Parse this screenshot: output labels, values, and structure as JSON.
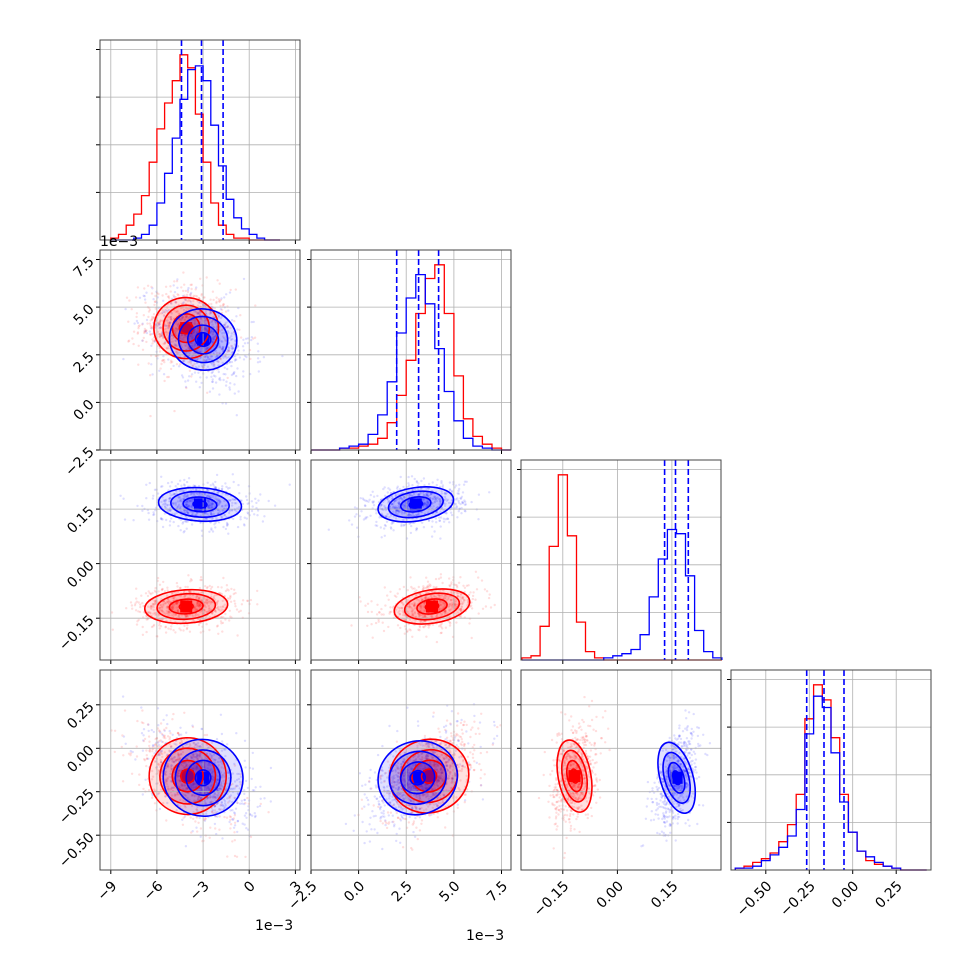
{
  "figure": {
    "colors": {
      "red": "#ff0000",
      "blue": "#0000ff",
      "grid": "#b0b0b0",
      "frame": "#000000"
    }
  },
  "chart_data": {
    "type": "corner",
    "series": [
      {
        "name": "",
        "color": "#ff0000"
      },
      {
        "name": "",
        "color": "#0000ff"
      }
    ],
    "parameters": [
      {
        "index": 0,
        "ticks": [
          -9,
          -6,
          -3,
          0,
          3
        ],
        "tick_labels": [
          "−9",
          "−6",
          "−3",
          "0",
          "3"
        ],
        "range": [
          -9.7,
          3.3
        ],
        "multiplier": "1e−3",
        "quantiles_blue": [
          -4.4,
          -3.1,
          -1.7
        ]
      },
      {
        "index": 1,
        "ticks": [
          -2.5,
          0.0,
          2.5,
          5.0,
          7.5
        ],
        "tick_labels": [
          "−2.5",
          "0.0",
          "2.5",
          "5.0",
          "7.5"
        ],
        "range": [
          -2.5,
          8.0
        ],
        "multiplier": "1e−3",
        "quantiles_blue": [
          2.0,
          3.15,
          4.2
        ]
      },
      {
        "index": 2,
        "ticks": [
          -0.15,
          0.0,
          0.15
        ],
        "tick_labels": [
          "−0.15",
          "0.00",
          "0.15"
        ],
        "range": [
          -0.265,
          0.285
        ],
        "quantiles_blue": [
          0.13,
          0.16,
          0.195
        ]
      },
      {
        "index": 3,
        "ticks": [
          -0.5,
          -0.25,
          0.0,
          0.25
        ],
        "tick_labels": [
          "−0.50",
          "−0.25",
          "0.00",
          "0.25"
        ],
        "range": [
          -0.7,
          0.45
        ],
        "quantiles_blue": [
          -0.265,
          -0.165,
          -0.05
        ]
      }
    ],
    "histograms": [
      {
        "param": 0,
        "bins_x": [
          -8.75,
          -8.25,
          -7.75,
          -7.25,
          -6.75,
          -6.25,
          -5.75,
          -5.25,
          -4.75,
          -4.25,
          -3.75,
          -3.25,
          -2.75,
          -2.25,
          -1.75,
          -1.25,
          -0.75,
          -0.25,
          0.25,
          0.75,
          1.25,
          1.75
        ],
        "red": [
          1,
          3,
          8,
          14,
          24,
          42,
          60,
          74,
          86,
          100,
          93,
          68,
          42,
          20,
          8,
          3,
          1,
          1,
          0,
          0,
          0,
          0
        ],
        "blue": [
          0,
          0,
          0,
          1,
          3,
          8,
          20,
          36,
          55,
          76,
          92,
          94,
          86,
          62,
          40,
          22,
          12,
          6,
          3,
          1,
          0,
          0
        ]
      },
      {
        "param": 1,
        "bins_x": [
          -2.25,
          -1.75,
          -1.25,
          -0.75,
          -0.25,
          0.25,
          0.75,
          1.25,
          1.75,
          2.25,
          2.75,
          3.25,
          3.75,
          4.25,
          4.75,
          5.25,
          5.75,
          6.25,
          6.75,
          7.25,
          7.75
        ],
        "red": [
          0,
          0,
          0,
          1,
          1,
          2,
          3,
          6,
          14,
          28,
          46,
          70,
          88,
          95,
          70,
          38,
          16,
          7,
          3,
          1,
          0
        ],
        "blue": [
          0,
          0,
          0,
          1,
          2,
          3,
          8,
          18,
          35,
          60,
          78,
          90,
          75,
          52,
          30,
          15,
          6,
          2,
          1,
          0,
          0
        ]
      },
      {
        "param": 2,
        "bins_x": [
          -0.25,
          -0.225,
          -0.2,
          -0.175,
          -0.15,
          -0.125,
          -0.1,
          -0.075,
          -0.05,
          -0.025,
          0.0,
          0.025,
          0.05,
          0.075,
          0.1,
          0.125,
          0.15,
          0.175,
          0.2,
          0.225,
          0.25,
          0.275
        ],
        "red": [
          1,
          2,
          16,
          54,
          88,
          59,
          18,
          4,
          1,
          0,
          0,
          0,
          0,
          0,
          0,
          0,
          0,
          0,
          0,
          0,
          0,
          0
        ],
        "blue": [
          0,
          0,
          0,
          0,
          0,
          0,
          0,
          0,
          0,
          1,
          2,
          3,
          5,
          12,
          30,
          48,
          62,
          60,
          40,
          14,
          4,
          1
        ]
      },
      {
        "param": 3,
        "bins_x": [
          -0.65,
          -0.6,
          -0.55,
          -0.5,
          -0.45,
          -0.4,
          -0.35,
          -0.3,
          -0.25,
          -0.2,
          -0.15,
          -0.1,
          -0.05,
          0.0,
          0.05,
          0.1,
          0.15,
          0.2,
          0.25,
          0.3,
          0.35,
          0.4
        ],
        "red": [
          1,
          2,
          4,
          6,
          9,
          15,
          24,
          40,
          80,
          98,
          90,
          70,
          40,
          20,
          10,
          5,
          3,
          2,
          1,
          0,
          0,
          0
        ],
        "blue": [
          1,
          1,
          2,
          5,
          8,
          12,
          18,
          32,
          72,
          92,
          86,
          62,
          36,
          20,
          10,
          7,
          4,
          2,
          1,
          0,
          0,
          0
        ]
      }
    ],
    "scatter2d": [
      {
        "x_param": 0,
        "y_param": 1,
        "red": {
          "mean": [
            -4.1,
            3.9
          ],
          "sd": [
            1.3,
            1.0
          ],
          "rho": -0.1,
          "contours": [
            [
              0.45,
              0.3
            ],
            [
              0.9,
              0.75
            ],
            [
              1.5,
              1.2
            ],
            [
              2.1,
              1.6
            ]
          ]
        },
        "blue": {
          "mean": [
            -3.0,
            3.3
          ],
          "sd": [
            1.4,
            1.05
          ],
          "rho": -0.35,
          "contours": [
            [
              0.5,
              0.35
            ],
            [
              1.0,
              0.75
            ],
            [
              1.6,
              1.2
            ],
            [
              2.2,
              1.6
            ]
          ]
        }
      },
      {
        "x_param": 0,
        "y_param": 2,
        "red": {
          "mean": [
            -4.1,
            -0.118
          ],
          "sd": [
            1.4,
            0.026
          ],
          "rho": 0.1,
          "contours": [
            [
              0.45,
              0.01
            ],
            [
              1.1,
              0.02
            ],
            [
              1.9,
              0.035
            ],
            [
              2.7,
              0.046
            ]
          ]
        },
        "blue": {
          "mean": [
            -3.2,
            0.163
          ],
          "sd": [
            1.4,
            0.026
          ],
          "rho": -0.1,
          "contours": [
            [
              0.45,
              0.01
            ],
            [
              1.1,
              0.02
            ],
            [
              1.9,
              0.035
            ],
            [
              2.7,
              0.046
            ]
          ]
        }
      },
      {
        "x_param": 1,
        "y_param": 2,
        "red": {
          "mean": [
            3.85,
            -0.118
          ],
          "sd": [
            1.1,
            0.026
          ],
          "rho": 0.25,
          "contours": [
            [
              0.35,
              0.01
            ],
            [
              0.8,
              0.02
            ],
            [
              1.45,
              0.035
            ],
            [
              2.0,
              0.046
            ]
          ]
        },
        "blue": {
          "mean": [
            3.0,
            0.163
          ],
          "sd": [
            1.1,
            0.026
          ],
          "rho": 0.25,
          "contours": [
            [
              0.35,
              0.01
            ],
            [
              0.8,
              0.02
            ],
            [
              1.45,
              0.035
            ],
            [
              2.0,
              0.046
            ]
          ]
        }
      },
      {
        "x_param": 0,
        "y_param": 3,
        "red": {
          "mean": [
            -4.0,
            -0.16
          ],
          "sd": [
            1.4,
            0.12
          ],
          "rho": -0.55,
          "contours": [
            [
              0.45,
              0.04
            ],
            [
              1.0,
              0.09
            ],
            [
              1.8,
              0.16
            ],
            [
              2.5,
              0.22
            ]
          ]
        },
        "blue": {
          "mean": [
            -3.0,
            -0.17
          ],
          "sd": [
            1.4,
            0.12
          ],
          "rho": -0.45,
          "contours": [
            [
              0.5,
              0.045
            ],
            [
              1.1,
              0.1
            ],
            [
              1.8,
              0.16
            ],
            [
              2.6,
              0.22
            ]
          ]
        }
      },
      {
        "x_param": 1,
        "y_param": 3,
        "red": {
          "mean": [
            3.7,
            -0.16
          ],
          "sd": [
            1.1,
            0.12
          ],
          "rho": 0.5,
          "contours": [
            [
              0.4,
              0.04
            ],
            [
              0.9,
              0.09
            ],
            [
              1.5,
              0.15
            ],
            [
              2.1,
              0.21
            ]
          ]
        },
        "blue": {
          "mean": [
            3.1,
            -0.17
          ],
          "sd": [
            1.1,
            0.12
          ],
          "rho": 0.55,
          "contours": [
            [
              0.4,
              0.04
            ],
            [
              0.9,
              0.09
            ],
            [
              1.5,
              0.15
            ],
            [
              2.1,
              0.21
            ]
          ]
        }
      },
      {
        "x_param": 2,
        "y_param": 3,
        "red": {
          "mean": [
            -0.118,
            -0.16
          ],
          "sd": [
            0.026,
            0.12
          ],
          "rho": 0.3,
          "contours": [
            [
              0.01,
              0.04
            ],
            [
              0.02,
              0.09
            ],
            [
              0.033,
              0.15
            ],
            [
              0.045,
              0.21
            ]
          ]
        },
        "blue": {
          "mean": [
            0.163,
            -0.17
          ],
          "sd": [
            0.026,
            0.12
          ],
          "rho": 0.45,
          "contours": [
            [
              0.01,
              0.04
            ],
            [
              0.02,
              0.09
            ],
            [
              0.033,
              0.15
            ],
            [
              0.045,
              0.21
            ]
          ]
        }
      }
    ],
    "grid": true
  }
}
